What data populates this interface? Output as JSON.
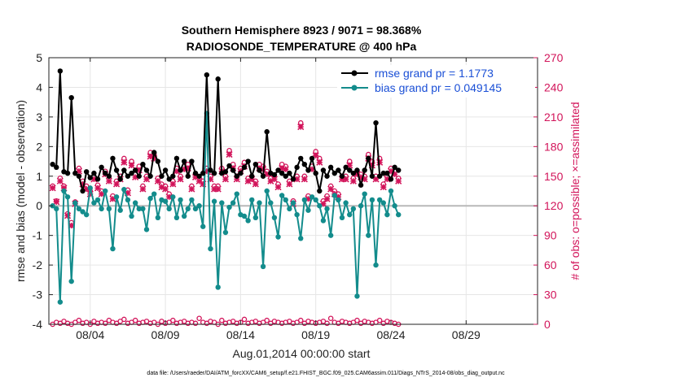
{
  "chart_data": {
    "type": "line",
    "title": "Southern Hemisphere 8923 / 9071 = 98.368%",
    "subtitle": "RADIOSONDE_TEMPERATURE @ 400 hPa",
    "xlabel": "Aug.01,2014 00:00:00 start",
    "ylabel": "rmse and bias (model - observation)",
    "ylabel_right": "# of obs: o=possible; ×=assimilated",
    "footer": "data file: /Users/raeder/DAI/ATM_forcXX/CAM6_setup/f.e21.FHIST_BGC.f09_025.CAM6assim.011/Diags_NTrS_2014-08/obs_diag_output.nc",
    "xlim": [
      1.25,
      33.75
    ],
    "ylim": [
      -4,
      5
    ],
    "ylim_right": [
      0,
      270
    ],
    "x_ticks": [
      4,
      9,
      14,
      19,
      24,
      29
    ],
    "x_tick_labels": [
      "08/04",
      "08/09",
      "08/14",
      "08/19",
      "08/24",
      "08/29"
    ],
    "y_ticks": [
      -4,
      -3,
      -2,
      -1,
      0,
      1,
      2,
      3,
      4,
      5
    ],
    "y_tick_labels": [
      "-4",
      "-3",
      "-2",
      "-1",
      "0",
      "1",
      "2",
      "3",
      "4",
      "5"
    ],
    "y_right_ticks": [
      0,
      30,
      60,
      90,
      120,
      150,
      180,
      210,
      240,
      270
    ],
    "y_right_tick_labels": [
      "0",
      "30",
      "60",
      "90",
      "120",
      "150",
      "180",
      "210",
      "240",
      "270"
    ],
    "x_start": 1.5,
    "x_step": 0.25,
    "series": [
      {
        "name": "rmse grand pr = 1.1773",
        "color": "#000000",
        "values": [
          1.4,
          1.3,
          4.55,
          1.15,
          1.1,
          3.65,
          1.1,
          1.0,
          0.5,
          1.15,
          0.95,
          1.1,
          0.9,
          1.3,
          1.1,
          1.0,
          1.6,
          1.2,
          0.9,
          1.2,
          1.0,
          1.1,
          1.2,
          1.0,
          1.4,
          1.2,
          1.0,
          1.8,
          1.5,
          1.0,
          1.2,
          0.9,
          1.0,
          1.6,
          1.2,
          1.5,
          1.0,
          1.5,
          1.1,
          1.0,
          1.1,
          4.42,
          1.2,
          1.1,
          4.28,
          1.1,
          1.15,
          1.35,
          1.2,
          1.0,
          1.1,
          1.3,
          1.5,
          1.0,
          1.4,
          1.2,
          1.0,
          2.5,
          1.1,
          1.05,
          1.2,
          1.1,
          1.0,
          1.1,
          0.9,
          1.3,
          1.6,
          1.4,
          1.2,
          1.6,
          1.1,
          0.5,
          1.2,
          1.0,
          1.3,
          1.1,
          1.2,
          1.0,
          1.3,
          1.2,
          1.1,
          1.2,
          0.7,
          1.2,
          1.6,
          1.0,
          2.8,
          1.0,
          1.1,
          1.1,
          0.9,
          1.3,
          1.2
        ]
      },
      {
        "name": "bias grand pr = 0.049145",
        "color": "#138c8c",
        "values": [
          0.0,
          -0.1,
          -3.25,
          0.5,
          0.3,
          -2.55,
          0.1,
          -0.1,
          -0.2,
          -0.3,
          0.6,
          0.1,
          0.2,
          -0.1,
          0.5,
          -0.1,
          -1.45,
          0.3,
          -0.15,
          0.55,
          0.2,
          -0.35,
          0.1,
          -0.1,
          -0.1,
          -0.8,
          0.25,
          0.4,
          -0.4,
          0.2,
          0.15,
          -0.1,
          0.3,
          -0.4,
          0.2,
          -0.35,
          -0.1,
          0.2,
          -0.1,
          0.0,
          -0.7,
          3.12,
          -1.45,
          0.15,
          -2.75,
          0.1,
          -0.9,
          -0.05,
          0.1,
          0.4,
          -0.3,
          -0.35,
          -0.5,
          0.2,
          -0.4,
          0.1,
          -2.05,
          0.5,
          0.1,
          -0.4,
          -1.05,
          0.35,
          0.2,
          -0.1,
          0.1,
          -0.3,
          -1.1,
          0.2,
          -0.15,
          0.3,
          0.2,
          0.0,
          -0.5,
          -0.1,
          -1.0,
          0.35,
          0.2,
          -0.4,
          0.1,
          -0.3,
          -0.1,
          -3.05,
          0.0,
          0.4,
          -1.0,
          0.2,
          -2.0,
          0.2,
          0.1,
          -0.3,
          0.5,
          0.0,
          -0.3
        ]
      },
      {
        "name": "obs possible",
        "color": "#d2145a",
        "marker": "o",
        "values": [
          140,
          125,
          148,
          140,
          112,
          103,
          124,
          158,
          145,
          140,
          135,
          150,
          141,
          135,
          155,
          148,
          130,
          145,
          150,
          168,
          136,
          165,
          152,
          160,
          140,
          150,
          174,
          172,
          148,
          142,
          140,
          132,
          145,
          158,
          150,
          160,
          162,
          140,
          152,
          148,
          145,
          158,
          150,
          140,
          140,
          158,
          150,
          176,
          162,
          150,
          158,
          164,
          148,
          150,
          145,
          162,
          160,
          155,
          148,
          150,
          142,
          162,
          160,
          145,
          125,
          150,
          204,
          150,
          130,
          160,
          175,
          168,
          125,
          130,
          140,
          135,
          132,
          150,
          150,
          165,
          148,
          155,
          152,
          150,
          172,
          165,
          150,
          168,
          142,
          150,
          158,
          155,
          148
        ]
      },
      {
        "name": "obs assimilated",
        "color": "#d2145a",
        "marker": "x",
        "values": [
          138,
          124,
          145,
          138,
          110,
          100,
          122,
          155,
          142,
          137,
          132,
          147,
          138,
          132,
          152,
          145,
          127,
          142,
          147,
          164,
          133,
          161,
          149,
          156,
          137,
          147,
          170,
          168,
          145,
          139,
          137,
          129,
          142,
          155,
          147,
          157,
          158,
          137,
          149,
          145,
          142,
          155,
          147,
          137,
          137,
          155,
          147,
          172,
          158,
          147,
          155,
          160,
          145,
          147,
          142,
          158,
          157,
          152,
          145,
          147,
          139,
          158,
          157,
          142,
          122,
          147,
          200,
          147,
          127,
          157,
          171,
          164,
          122,
          127,
          137,
          132,
          129,
          147,
          147,
          161,
          145,
          152,
          149,
          147,
          168,
          161,
          147,
          164,
          139,
          147,
          155,
          152,
          145
        ]
      },
      {
        "name": "obs possible (bottom row)",
        "color": "#d2145a",
        "marker": "o",
        "values": [
          0,
          2,
          1,
          3,
          1,
          0,
          2,
          4,
          1,
          2,
          0,
          3,
          1,
          2,
          1,
          4,
          2,
          1,
          3,
          5,
          1,
          2,
          4,
          1,
          2,
          3,
          1,
          2,
          0,
          3,
          1,
          2,
          4,
          1,
          2,
          3,
          1,
          2,
          1,
          6,
          2,
          1,
          3,
          2,
          0,
          4,
          1,
          2,
          3,
          1,
          2,
          5,
          1,
          2,
          3,
          1,
          2,
          4,
          1,
          3,
          2,
          1,
          2,
          3,
          1,
          2,
          4,
          1,
          3,
          2,
          1,
          2,
          3,
          1,
          6,
          2,
          1,
          3,
          2,
          1,
          2,
          4,
          1,
          3,
          2,
          1,
          2,
          4,
          1,
          3,
          2,
          1,
          0
        ]
      }
    ],
    "legend": [
      {
        "label": "rmse grand pr = 1.1773",
        "color": "#000000"
      },
      {
        "label": "bias grand pr = 0.049145",
        "color": "#138c8c"
      }
    ],
    "legend_position": "top-right",
    "grid": true
  }
}
